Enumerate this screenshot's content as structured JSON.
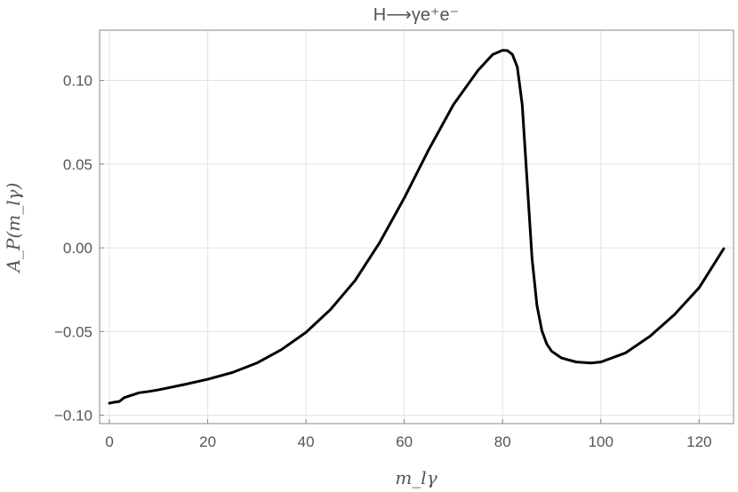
{
  "chart_data": {
    "type": "line",
    "title": "H⟶γe⁺e⁻",
    "xlabel": "m_lγ",
    "ylabel": "A_P(m_lγ)",
    "xlim": [
      -2,
      127
    ],
    "ylim": [
      -0.105,
      0.13
    ],
    "x_ticks": [
      0,
      20,
      40,
      60,
      80,
      100,
      120
    ],
    "x_tick_labels": [
      "0",
      "20",
      "40",
      "60",
      "80",
      "100",
      "120"
    ],
    "y_ticks": [
      -0.1,
      -0.05,
      0.0,
      0.05,
      0.1
    ],
    "y_tick_labels": [
      "−0.10",
      "−0.05",
      "0.00",
      "0.05",
      "0.10"
    ],
    "grid": true,
    "series": [
      {
        "color": "#000000",
        "x": [
          0,
          1,
          2,
          3,
          4,
          5,
          6,
          8,
          10,
          15,
          20,
          25,
          30,
          35,
          40,
          45,
          50,
          55,
          60,
          65,
          70,
          75,
          78,
          80,
          81,
          82,
          83,
          84,
          85,
          86,
          87,
          88,
          89,
          90,
          92,
          95,
          98,
          100,
          105,
          110,
          115,
          120,
          125
        ],
        "y": [
          -0.0928,
          -0.0922,
          -0.0918,
          -0.0895,
          -0.0885,
          -0.0876,
          -0.0866,
          -0.0858,
          -0.0848,
          -0.0818,
          -0.0785,
          -0.0745,
          -0.0688,
          -0.0608,
          -0.0505,
          -0.0368,
          -0.0195,
          0.0032,
          0.0298,
          0.0588,
          0.0855,
          0.106,
          0.1155,
          0.118,
          0.1178,
          0.1155,
          0.108,
          0.0855,
          0.0395,
          -0.0065,
          -0.0345,
          -0.0495,
          -0.0575,
          -0.0618,
          -0.0658,
          -0.0682,
          -0.0688,
          -0.0682,
          -0.0628,
          -0.0528,
          -0.0398,
          -0.0238,
          -0.0005
        ]
      }
    ]
  }
}
